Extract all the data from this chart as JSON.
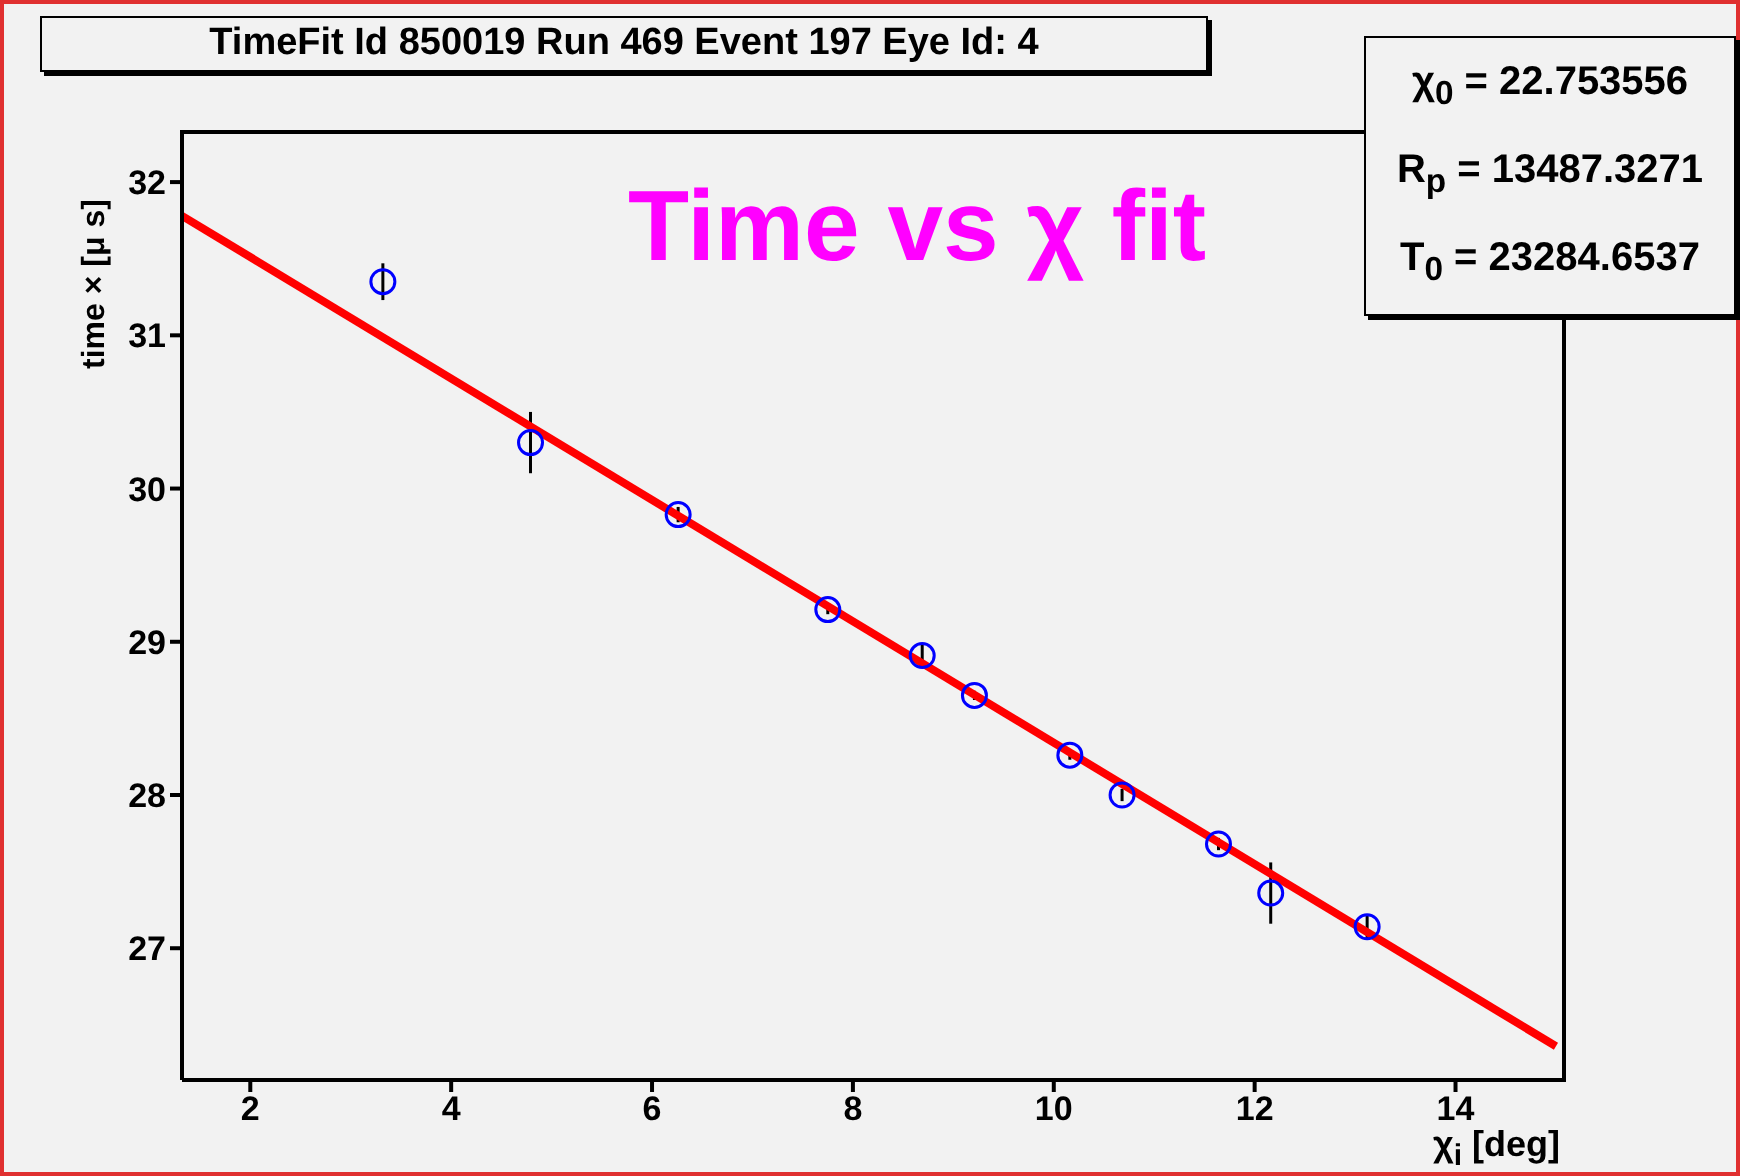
{
  "chart_data": {
    "type": "scatter",
    "title": "TimeFit Id 850019 Run 469 Event 197 Eye Id: 4",
    "xlabel": "χ$_{i}$  [deg]",
    "ylabel": "time ×  [μ s]",
    "annotations": [
      "Time vs χ fit",
      "χ$_{0}$ = 22.753556",
      "R$_{p}$ = 13487.3271",
      "T$_{0}$ = 23284.6537"
    ],
    "xlim": [
      1.32,
      15.1
    ],
    "xticks": [
      2,
      4,
      6,
      8,
      10,
      12,
      14
    ],
    "ylim": [
      26.14,
      32.34
    ],
    "yticks": [
      27,
      28,
      29,
      30,
      31,
      32
    ],
    "grid": false,
    "legend": false,
    "series": [
      {
        "marker": "circle",
        "color": "#0000ff",
        "x": [
          3.32,
          4.79,
          6.26,
          7.75,
          8.69,
          9.21,
          10.16,
          10.68,
          11.64,
          12.16,
          13.12
        ],
        "values": [
          31.35,
          30.3,
          29.83,
          29.21,
          28.91,
          28.65,
          28.26,
          28.0,
          27.68,
          27.36,
          27.14
        ],
        "errors": [
          0.12,
          0.2,
          0.05,
          0.03,
          0.08,
          0.03,
          0.03,
          0.04,
          0.04,
          0.2,
          0.08
        ]
      },
      {
        "type": "line",
        "marker": "none",
        "color": "#ff0000",
        "x": [
          1.32,
          15.0
        ],
        "values": [
          31.78,
          26.36
        ]
      }
    ]
  }
}
